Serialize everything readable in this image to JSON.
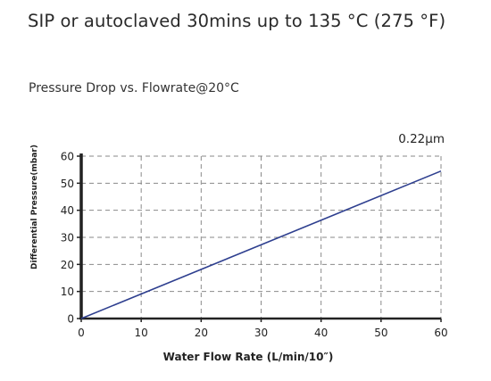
{
  "headline": "SIP or autoclaved 30mins up to 135 °C (275 °F)",
  "chart_data": {
    "type": "line",
    "title": "Pressure Drop vs. Flowrate@20°C",
    "xlabel": "Water Flow Rate (L/min/10″)",
    "ylabel": "Differential Pressure(mbar)",
    "xlim": [
      0,
      60
    ],
    "ylim": [
      0,
      60
    ],
    "x_ticks": [
      0,
      10,
      20,
      30,
      40,
      50,
      60
    ],
    "y_ticks": [
      0,
      10,
      20,
      30,
      40,
      50,
      60
    ],
    "grid": true,
    "series": [
      {
        "name": "0.22μm",
        "color": "#2e3f8f",
        "x": [
          0,
          60
        ],
        "y": [
          0,
          54.5
        ]
      }
    ]
  }
}
